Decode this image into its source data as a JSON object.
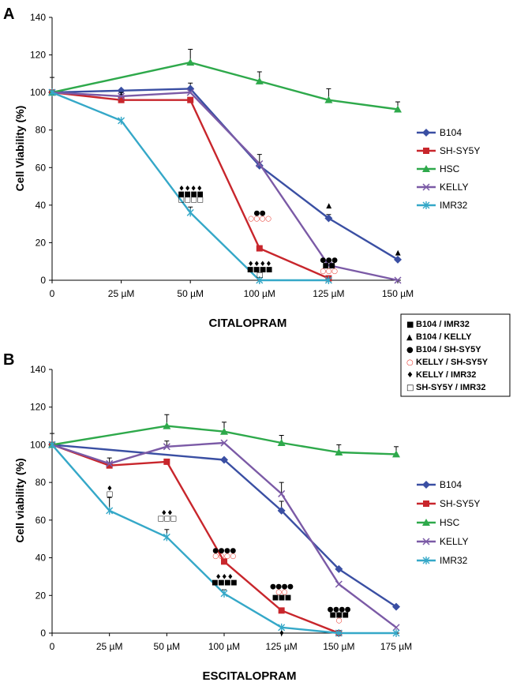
{
  "symbols": {
    "sq": {
      "char": "■",
      "color": "#000000"
    },
    "tri": {
      "char": "▲",
      "color": "#000000"
    },
    "dot": {
      "char": "●",
      "color": "#000000"
    },
    "ring": {
      "char": "○",
      "color": "#e8362c"
    },
    "dia": {
      "char": "♦",
      "color": "#000000"
    },
    "box": {
      "char": "□",
      "color": "#000000"
    }
  },
  "key": {
    "items": [
      {
        "sym": "sq",
        "label": "B104 / IMR32"
      },
      {
        "sym": "tri",
        "label": "B104 / KELLY"
      },
      {
        "sym": "dot",
        "label": "B104 / SH-SY5Y"
      },
      {
        "sym": "ring",
        "label": "KELLY / SH-SY5Y"
      },
      {
        "sym": "dia",
        "label": "KELLY / IMR32"
      },
      {
        "sym": "box",
        "label": "SH-SY5Y / IMR32"
      }
    ]
  },
  "chart_data": [
    {
      "panel": "A",
      "type": "line",
      "xlabel": "CITALOPRAM",
      "ylabel": "Cell Viability  (%)",
      "categories": [
        "0",
        "25 µM",
        "50 µM",
        "100 µM",
        "125 µM",
        "150 µM"
      ],
      "ylim": [
        0,
        140
      ],
      "yticks": [
        0,
        20,
        40,
        60,
        80,
        100,
        120,
        140
      ],
      "legend_position": "right",
      "series": [
        {
          "name": "B104",
          "color": "#3a4fa3",
          "marker": "diamond",
          "values": [
            100,
            101,
            102,
            61,
            33,
            11
          ],
          "errors": [
            null,
            null,
            3,
            null,
            2,
            null
          ]
        },
        {
          "name": "SH-SY5Y",
          "color": "#c8262c",
          "marker": "square",
          "values": [
            100,
            96,
            96,
            17,
            1,
            null
          ],
          "errors": [
            8,
            3,
            null,
            null,
            null,
            null
          ]
        },
        {
          "name": "HSC",
          "color": "#2ea94b",
          "marker": "triangle",
          "values": [
            100,
            null,
            116,
            106,
            96,
            91
          ],
          "errors": [
            null,
            null,
            7,
            5,
            6,
            4
          ]
        },
        {
          "name": "KELLY",
          "color": "#7b5aa6",
          "marker": "x",
          "values": [
            100,
            98,
            100,
            62,
            8,
            0
          ],
          "errors": [
            null,
            2,
            null,
            5,
            null,
            null
          ]
        },
        {
          "name": "IMR32",
          "color": "#35a8c8",
          "marker": "star",
          "values": [
            100,
            85,
            36,
            0,
            0,
            null
          ],
          "errors": [
            null,
            null,
            3,
            null,
            null,
            null
          ]
        }
      ],
      "annotations": [
        {
          "x": 2,
          "y": 43,
          "lines": [
            [
              "dia",
              4
            ],
            [
              "sq",
              4
            ],
            [
              "box",
              4
            ]
          ]
        },
        {
          "x": 3,
          "y": 33,
          "lines": [
            [
              "dot",
              2
            ],
            [
              "ring",
              4
            ]
          ]
        },
        {
          "x": 3,
          "y": 3,
          "lines": [
            [
              "dia",
              4
            ],
            [
              "sq",
              4
            ],
            [
              "box",
              1
            ]
          ]
        },
        {
          "x": 4,
          "y": 40,
          "lines": [
            [
              "tri",
              1
            ]
          ]
        },
        {
          "x": 4,
          "y": 5,
          "lines": [
            [
              "dot",
              3
            ],
            [
              "sq",
              2
            ],
            [
              "ring",
              3
            ]
          ]
        },
        {
          "x": 5,
          "y": 15,
          "lines": [
            [
              "tri",
              1
            ]
          ]
        }
      ]
    },
    {
      "panel": "B",
      "type": "line",
      "xlabel": "ESCITALOPRAM",
      "ylabel": "Cell viability (%)",
      "categories": [
        "0",
        "25 µM",
        "50 µM",
        "100 µM",
        "125 µM",
        "150 µM",
        "175 µM"
      ],
      "ylim": [
        0,
        140
      ],
      "yticks": [
        0,
        20,
        40,
        60,
        80,
        100,
        120,
        140
      ],
      "legend_position": "right",
      "series": [
        {
          "name": "B104",
          "color": "#3a4fa3",
          "marker": "diamond",
          "values": [
            100,
            null,
            null,
            92,
            65,
            34,
            14
          ],
          "errors": [
            6,
            null,
            null,
            null,
            5,
            null,
            null
          ]
        },
        {
          "name": "SH-SY5Y",
          "color": "#c8262c",
          "marker": "square",
          "values": [
            100,
            89,
            91,
            38,
            12,
            0,
            null
          ],
          "errors": [
            null,
            4,
            null,
            null,
            null,
            null,
            null
          ]
        },
        {
          "name": "HSC",
          "color": "#2ea94b",
          "marker": "triangle",
          "values": [
            100,
            null,
            110,
            107,
            101,
            96,
            95
          ],
          "errors": [
            null,
            null,
            6,
            5,
            4,
            4,
            4
          ]
        },
        {
          "name": "KELLY",
          "color": "#7b5aa6",
          "marker": "x",
          "values": [
            100,
            90,
            99,
            101,
            74,
            26,
            3
          ],
          "errors": [
            null,
            null,
            3,
            null,
            6,
            null,
            null
          ]
        },
        {
          "name": "IMR32",
          "color": "#35a8c8",
          "marker": "star",
          "values": [
            100,
            65,
            51,
            21,
            3,
            0,
            0
          ],
          "errors": [
            null,
            7,
            4,
            2,
            null,
            null,
            null
          ]
        }
      ],
      "annotations": [
        {
          "x": 1,
          "y": 74,
          "lines": [
            [
              "dia",
              1
            ],
            [
              "box",
              1
            ]
          ]
        },
        {
          "x": 2,
          "y": 61,
          "lines": [
            [
              "dia",
              2
            ],
            [
              "box",
              3
            ]
          ]
        },
        {
          "x": 3,
          "y": 41,
          "lines": [
            [
              "dot",
              4
            ],
            [
              "ring",
              4
            ]
          ]
        },
        {
          "x": 3,
          "y": 27,
          "lines": [
            [
              "dia",
              3
            ],
            [
              "sq",
              4
            ]
          ]
        },
        {
          "x": 4,
          "y": 19,
          "lines": [
            [
              "dot",
              4
            ],
            [
              "ring",
              2
            ],
            [
              "sq",
              3
            ]
          ]
        },
        {
          "x": 4,
          "y": 0,
          "lines": [
            [
              "dia",
              1
            ]
          ]
        },
        {
          "x": 5,
          "y": 7,
          "lines": [
            [
              "dot",
              4
            ],
            [
              "sq",
              3
            ],
            [
              "ring",
              1
            ]
          ]
        }
      ]
    }
  ]
}
